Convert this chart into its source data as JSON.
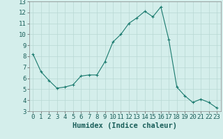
{
  "x": [
    0,
    1,
    2,
    3,
    4,
    5,
    6,
    7,
    8,
    9,
    10,
    11,
    12,
    13,
    14,
    15,
    16,
    17,
    18,
    19,
    20,
    21,
    22,
    23
  ],
  "y": [
    8.2,
    6.6,
    5.8,
    5.1,
    5.2,
    5.4,
    6.2,
    6.3,
    6.3,
    7.5,
    9.3,
    10.0,
    11.0,
    11.5,
    12.1,
    11.6,
    12.5,
    9.5,
    5.2,
    4.4,
    3.8,
    4.1,
    3.8,
    3.3
  ],
  "line_color": "#1a7a6e",
  "marker": "+",
  "marker_size": 3,
  "background_color": "#d4eeeb",
  "grid_color": "#b8d8d4",
  "xlabel": "Humidex (Indice chaleur)",
  "xlim": [
    -0.5,
    23.5
  ],
  "ylim": [
    3,
    13
  ],
  "yticks": [
    3,
    4,
    5,
    6,
    7,
    8,
    9,
    10,
    11,
    12,
    13
  ],
  "xticks": [
    0,
    1,
    2,
    3,
    4,
    5,
    6,
    7,
    8,
    9,
    10,
    11,
    12,
    13,
    14,
    15,
    16,
    17,
    18,
    19,
    20,
    21,
    22,
    23
  ],
  "tick_fontsize": 6.5,
  "label_fontsize": 7.5
}
